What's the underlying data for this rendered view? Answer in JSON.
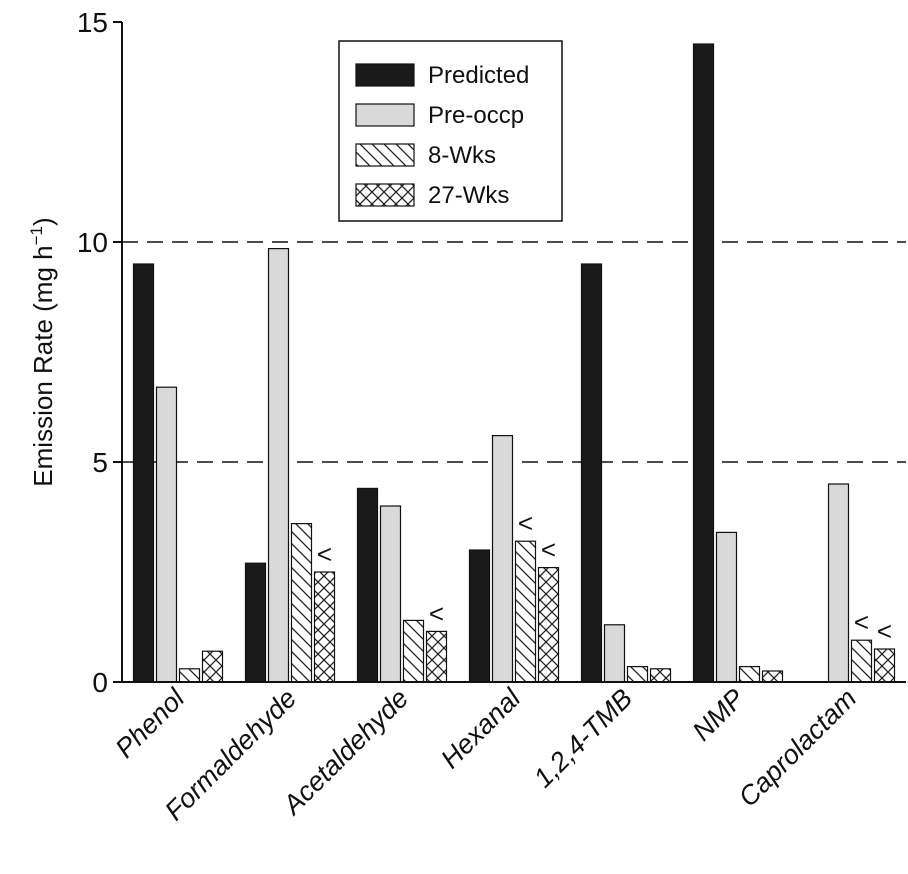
{
  "chart_data": {
    "type": "bar",
    "ylabel": "Emission Rate (mg h",
    "ylabel_sup": "−1",
    "ylabel_close": ")",
    "ylim": [
      0,
      15
    ],
    "yticks": [
      "0",
      "5",
      "10",
      "15"
    ],
    "reference_lines": [
      5,
      10
    ],
    "categories": [
      "Phenol",
      "Formaldehyde",
      "Acetaldehyde",
      "Hexanal",
      "1,2,4-TMB",
      "NMP",
      "Caprolactam"
    ],
    "series": [
      {
        "name": "Predicted",
        "fill": "#1a1a1a",
        "pattern": "solid",
        "values": [
          9.5,
          2.7,
          4.4,
          3.0,
          9.5,
          14.5,
          null
        ]
      },
      {
        "name": "Pre-occp",
        "fill": "#d9d9d9",
        "pattern": "solid",
        "values": [
          6.7,
          9.85,
          4.0,
          5.6,
          1.3,
          3.4,
          4.5
        ]
      },
      {
        "name": "8-Wks",
        "fill": "#ffffff",
        "pattern": "hatch",
        "values": [
          0.3,
          3.6,
          1.4,
          3.2,
          0.35,
          0.35,
          0.95
        ]
      },
      {
        "name": "27-Wks",
        "fill": "#ffffff",
        "pattern": "crosshatch",
        "values": [
          0.7,
          2.5,
          1.15,
          2.6,
          0.3,
          0.25,
          0.75
        ]
      }
    ],
    "below_detection_markers": [
      {
        "category": "Formaldehyde",
        "series": "27-Wks",
        "text": "<"
      },
      {
        "category": "Acetaldehyde",
        "series": "27-Wks",
        "text": "<"
      },
      {
        "category": "Hexanal",
        "series": "8-Wks",
        "text": "<"
      },
      {
        "category": "Hexanal",
        "series": "27-Wks",
        "text": "<"
      },
      {
        "category": "Caprolactam",
        "series": "8-Wks",
        "text": "<"
      },
      {
        "category": "Caprolactam",
        "series": "27-Wks",
        "text": "<"
      }
    ],
    "legend_position": "top-center",
    "grid": false
  }
}
